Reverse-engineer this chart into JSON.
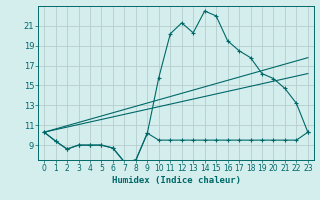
{
  "xlabel": "Humidex (Indice chaleur)",
  "bg_color": "#d4eeee",
  "grid_color": "#b8cccc",
  "line_color": "#006868",
  "xlim": [
    -0.5,
    23.5
  ],
  "ylim": [
    7.5,
    23.0
  ],
  "yticks": [
    9,
    11,
    13,
    15,
    17,
    19,
    21
  ],
  "xticks": [
    0,
    1,
    2,
    3,
    4,
    5,
    6,
    7,
    8,
    9,
    10,
    11,
    12,
    13,
    14,
    15,
    16,
    17,
    18,
    19,
    20,
    21,
    22,
    23
  ],
  "series_base_x": [
    0,
    1,
    2,
    3,
    4,
    5,
    6,
    7,
    8,
    9,
    10,
    11,
    12,
    13,
    14,
    15,
    16,
    17,
    18,
    19,
    20,
    21,
    22,
    23
  ],
  "series_base_y": [
    10.3,
    9.4,
    8.6,
    9.0,
    9.0,
    9.0,
    8.7,
    7.3,
    7.5,
    10.2,
    9.5,
    9.5,
    9.5,
    9.5,
    9.5,
    9.5,
    9.5,
    9.5,
    9.5,
    9.5,
    9.5,
    9.5,
    9.5,
    10.3
  ],
  "series_main_x": [
    0,
    1,
    2,
    3,
    4,
    5,
    6,
    7,
    8,
    9,
    10,
    11,
    12,
    13,
    14,
    15,
    16,
    17,
    18,
    19,
    20,
    21,
    22,
    23
  ],
  "series_main_y": [
    10.3,
    9.4,
    8.6,
    9.0,
    9.0,
    9.0,
    8.7,
    7.3,
    7.5,
    10.2,
    15.8,
    20.2,
    21.3,
    20.3,
    22.5,
    22.0,
    19.5,
    18.5,
    17.8,
    16.2,
    15.7,
    14.7,
    13.2,
    10.3
  ],
  "trend1_x": [
    0,
    23
  ],
  "trend1_y": [
    10.3,
    17.8
  ],
  "trend2_x": [
    0,
    23
  ],
  "trend2_y": [
    10.3,
    16.2
  ]
}
